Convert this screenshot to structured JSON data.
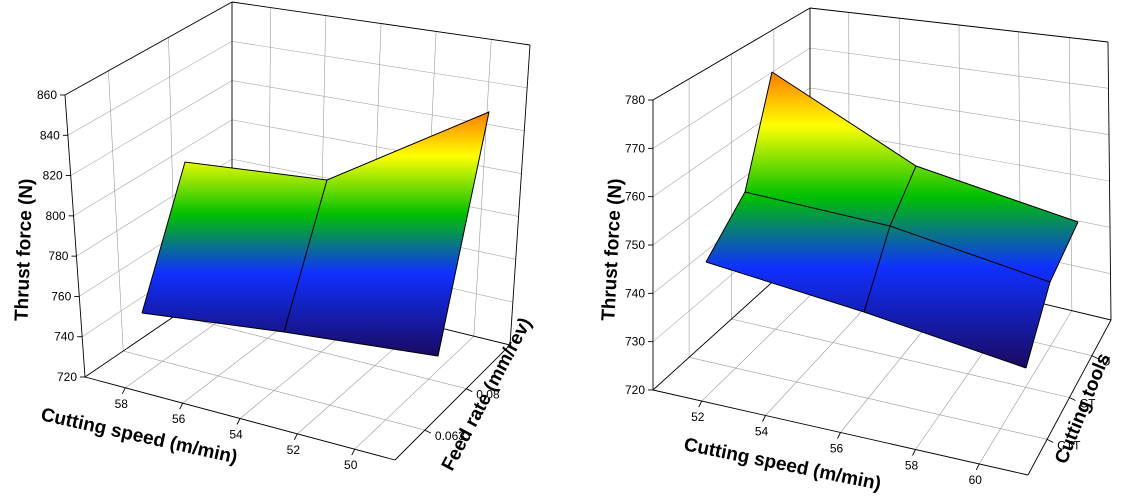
{
  "chart_data": [
    {
      "type": "surface",
      "ylabel": "Thrust force (N)",
      "zlim": [
        720,
        860
      ],
      "z_ticks": [
        "720",
        "740",
        "760",
        "780",
        "800",
        "820",
        "840",
        "860"
      ],
      "x_axis": {
        "label": "Cutting speed (m/min)",
        "ticks": [
          "58",
          "56",
          "54",
          "52",
          "50"
        ],
        "range": [
          50,
          59.5
        ]
      },
      "y_axis": {
        "label": "Feed rate (mm/rev)",
        "ticks": [
          "0.063",
          "0.08"
        ],
        "range": [
          0.05,
          0.1
        ]
      },
      "grid": true,
      "mesh_x": [
        50,
        55,
        60
      ],
      "mesh_y": [
        0.063,
        0.08
      ],
      "z_values": [
        [
          747,
          811
        ],
        [
          743,
          765
        ],
        [
          737,
          745
        ]
      ]
    },
    {
      "type": "surface",
      "ylabel": "Thrust force (N)",
      "zlim": [
        720,
        780
      ],
      "z_ticks": [
        "720",
        "730",
        "740",
        "750",
        "760",
        "770",
        "780"
      ],
      "x_axis": {
        "label": "Cutting speed (m/min)",
        "ticks": [
          "52",
          "54",
          "56",
          "58",
          "60"
        ],
        "range": [
          50,
          60
        ]
      },
      "y_axis": {
        "label": "Cutting tools",
        "ticks": [
          "CTT",
          "CT",
          "U"
        ],
        "range": [
          0,
          3
        ]
      },
      "grid": true,
      "mesh_x": [
        50,
        55,
        60
      ],
      "mesh_y": [
        "CTT",
        "CT",
        "U"
      ],
      "z_values": [
        [
          748,
          757,
          778
        ],
        [
          742,
          748,
          758
        ],
        [
          736,
          742,
          751
        ]
      ]
    }
  ]
}
